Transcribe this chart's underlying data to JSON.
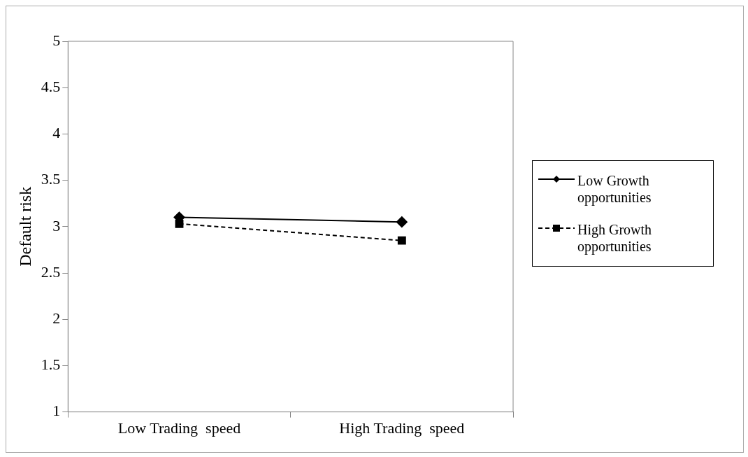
{
  "chart_data": {
    "type": "line",
    "ylabel": "Default risk",
    "categories": [
      "Low Trading  speed",
      "High Trading  speed"
    ],
    "series": [
      {
        "name": "Low Growth opportunities",
        "color": "#000000",
        "values": [
          3.1,
          3.05
        ],
        "marker": "diamond",
        "line_style": "solid"
      },
      {
        "name": "High Growth opportunities",
        "color": "#000000",
        "values": [
          3.03,
          2.85
        ],
        "marker": "square",
        "line_style": "dashed"
      }
    ],
    "ylim": [
      1,
      5
    ],
    "yticks": [
      1,
      1.5,
      2,
      2.5,
      3,
      3.5,
      4,
      4.5,
      5
    ],
    "grid": false,
    "legend": "right"
  }
}
